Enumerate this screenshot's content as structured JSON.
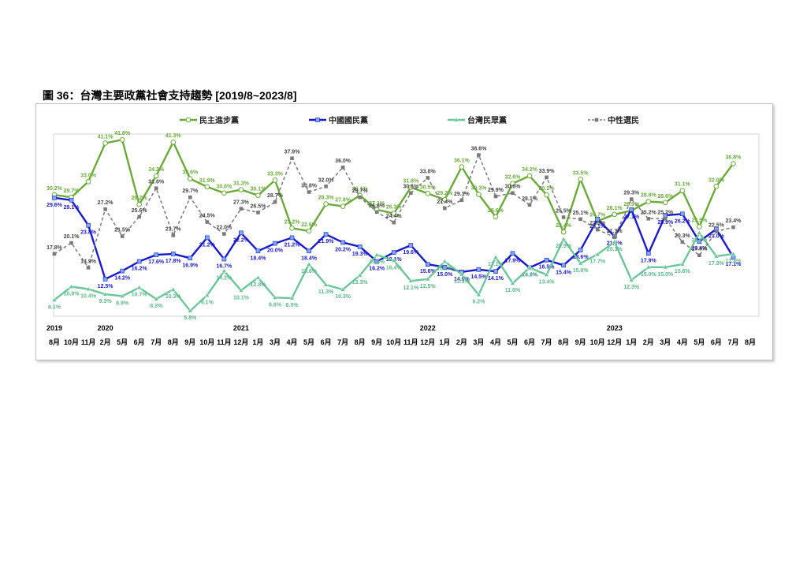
{
  "figure_title": "圖 36：台灣主要政黨社會支持趨勢  [2019/8~2023/8]",
  "chart_data": {
    "type": "line",
    "title": "圖 36：台灣主要政黨社會支持趨勢  [2019/8~2023/8]",
    "xlabel": "",
    "ylabel": "",
    "ylim": [
      0,
      45
    ],
    "grid": false,
    "legend_position": "top",
    "years": [
      {
        "label": "2019",
        "index": 0
      },
      {
        "label": "2020",
        "index": 3
      },
      {
        "label": "2021",
        "index": 11
      },
      {
        "label": "2022",
        "index": 22
      },
      {
        "label": "2023",
        "index": 33
      }
    ],
    "categories": [
      "8月",
      "10月",
      "11月",
      "2月",
      "5月",
      "6月",
      "7月",
      "8月",
      "9月",
      "10月",
      "11月",
      "12月",
      "1月",
      "3月",
      "4月",
      "5月",
      "6月",
      "7月",
      "8月",
      "9月",
      "10月",
      "11月",
      "12月",
      "1月",
      "2月",
      "3月",
      "4月",
      "5月",
      "6月",
      "7月",
      "8月",
      "9月",
      "10月",
      "12月",
      "1月",
      "2月",
      "3月",
      "4月",
      "5月",
      "6月",
      "7月",
      "8月"
    ],
    "series": [
      {
        "name": "民主進步黨",
        "color": "#6aaa3a",
        "dash": false,
        "marker": "circle",
        "values": [
          30.2,
          29.7,
          33.0,
          41.1,
          41.8,
          28.2,
          34.2,
          41.3,
          33.6,
          31.9,
          30.6,
          31.3,
          30.1,
          33.3,
          23.2,
          22.6,
          28.3,
          27.8,
          30.1,
          27.1,
          26.3,
          31.8,
          30.5,
          29.2,
          36.1,
          30.3,
          25.6,
          32.6,
          34.2,
          30.2,
          22.4,
          33.5,
          24.7,
          26.1,
          26.9,
          28.8,
          28.6,
          31.1,
          23.5,
          32.0,
          36.8,
          null
        ]
      },
      {
        "name": "中國國民黨",
        "color": "#1a1ac8",
        "dash": false,
        "marker": "circle",
        "values": [
          29.6,
          29.1,
          23.8,
          12.5,
          14.2,
          16.2,
          17.6,
          17.8,
          16.9,
          21.2,
          16.7,
          22.2,
          18.4,
          20.0,
          21.2,
          18.4,
          21.9,
          20.2,
          19.3,
          16.2,
          18.1,
          19.6,
          15.6,
          15.0,
          14.0,
          14.5,
          14.1,
          17.9,
          14.9,
          16.5,
          15.4,
          18.6,
          25.1,
          21.5,
          27.1,
          17.9,
          25.9,
          26.2,
          20.4,
          23.0,
          17.1,
          null
        ]
      },
      {
        "name": "台灣民眾黨",
        "color": "#6cc59a",
        "dash": false,
        "marker": "triangle",
        "values": [
          8.1,
          10.9,
          10.4,
          9.3,
          8.9,
          10.7,
          8.3,
          10.3,
          5.8,
          9.1,
          14.2,
          10.1,
          12.8,
          8.6,
          8.5,
          15.6,
          11.3,
          10.3,
          13.3,
          17.6,
          16.4,
          12.1,
          12.5,
          16.2,
          13.5,
          9.2,
          17.1,
          11.6,
          14.9,
          13.4,
          20.9,
          15.8,
          17.7,
          20.3,
          12.3,
          15.0,
          15.0,
          15.6,
          22.2,
          17.3,
          17.8,
          null
        ]
      },
      {
        "name": "中性選民",
        "color": "#7a7a7a",
        "dash": true,
        "marker": "square",
        "values": [
          17.8,
          20.1,
          14.9,
          27.2,
          21.5,
          25.6,
          31.6,
          21.7,
          29.7,
          24.5,
          22.0,
          27.3,
          26.5,
          28.7,
          37.9,
          30.8,
          32.0,
          36.0,
          29.7,
          26.6,
          24.4,
          30.6,
          33.8,
          27.4,
          29.1,
          38.6,
          29.9,
          30.6,
          28.1,
          33.9,
          25.5,
          25.1,
          22.9,
          21.3,
          29.3,
          25.2,
          25.2,
          20.3,
          17.5,
          22.5,
          23.4,
          null
        ]
      }
    ]
  }
}
